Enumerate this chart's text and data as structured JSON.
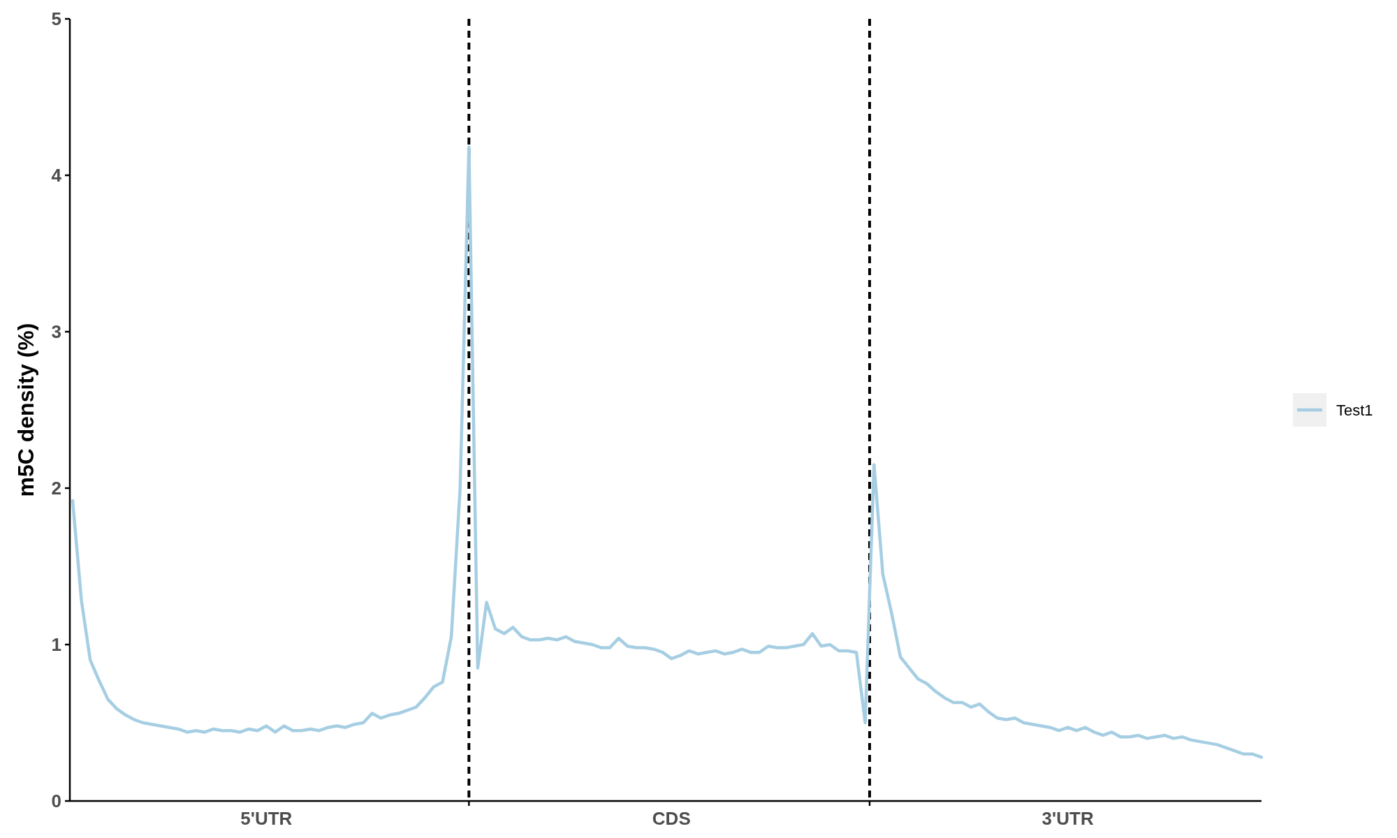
{
  "chart_data": {
    "type": "line",
    "ylabel": "m5C density (%)",
    "categories": [
      null,
      null,
      null,
      null,
      null,
      null,
      null,
      null,
      null,
      null,
      null,
      null,
      null,
      null,
      null,
      null,
      null,
      null,
      null,
      null,
      null,
      null,
      "5'UTR",
      null,
      null,
      null,
      null,
      null,
      null,
      null,
      null,
      null,
      null,
      null,
      null,
      null,
      null,
      null,
      null,
      null,
      null,
      null,
      null,
      null,
      null,
      null,
      null,
      null,
      null,
      null,
      null,
      null,
      null,
      null,
      null,
      null,
      null,
      null,
      null,
      null,
      null,
      null,
      null,
      null,
      null,
      null,
      null,
      null,
      "CDS",
      null,
      null,
      null,
      null,
      null,
      null,
      null,
      null,
      null,
      null,
      null,
      null,
      null,
      null,
      null,
      null,
      null,
      null,
      null,
      null,
      null,
      null,
      null,
      null,
      null,
      null,
      null,
      null,
      null,
      null,
      null,
      null,
      null,
      null,
      null,
      null,
      null,
      null,
      null,
      null,
      null,
      null,
      null,
      null,
      "3'UTR",
      null,
      null,
      null,
      null,
      null,
      null,
      null,
      null,
      null,
      null,
      null,
      null,
      null,
      null,
      null,
      null,
      null,
      null,
      null,
      null,
      null,
      null
    ],
    "series": [
      {
        "name": "Test1",
        "color": "#a6cee3",
        "values": [
          1.92,
          1.28,
          0.9,
          0.77,
          0.65,
          0.59,
          0.55,
          0.52,
          0.5,
          0.49,
          0.48,
          0.47,
          0.46,
          0.44,
          0.45,
          0.44,
          0.46,
          0.45,
          0.45,
          0.44,
          0.46,
          0.45,
          0.48,
          0.44,
          0.48,
          0.45,
          0.45,
          0.46,
          0.45,
          0.47,
          0.48,
          0.47,
          0.49,
          0.5,
          0.56,
          0.53,
          0.55,
          0.56,
          0.58,
          0.6,
          0.66,
          0.73,
          0.76,
          1.05,
          2.0,
          4.18,
          0.85,
          1.27,
          1.1,
          1.07,
          1.11,
          1.05,
          1.03,
          1.03,
          1.04,
          1.03,
          1.05,
          1.02,
          1.01,
          1.0,
          0.98,
          0.98,
          1.04,
          0.99,
          0.98,
          0.98,
          0.97,
          0.95,
          0.91,
          0.93,
          0.96,
          0.94,
          0.95,
          0.96,
          0.94,
          0.95,
          0.97,
          0.95,
          0.95,
          0.99,
          0.98,
          0.98,
          0.99,
          1.0,
          1.07,
          0.99,
          1.0,
          0.96,
          0.96,
          0.95,
          0.5,
          2.15,
          1.45,
          1.2,
          0.92,
          0.85,
          0.78,
          0.75,
          0.7,
          0.66,
          0.63,
          0.63,
          0.6,
          0.62,
          0.57,
          0.53,
          0.52,
          0.53,
          0.5,
          0.49,
          0.48,
          0.47,
          0.45,
          0.47,
          0.45,
          0.47,
          0.44,
          0.42,
          0.44,
          0.41,
          0.41,
          0.42,
          0.4,
          0.41,
          0.42,
          0.4,
          0.41,
          0.39,
          0.38,
          0.37,
          0.36,
          0.34,
          0.32,
          0.3,
          0.3,
          0.28
        ]
      }
    ],
    "ylim": [
      0,
      5
    ],
    "yticks": [
      0,
      1,
      2,
      3,
      4,
      5
    ],
    "legend": "right",
    "grid": false,
    "line_style": "solid",
    "marker": "none"
  }
}
